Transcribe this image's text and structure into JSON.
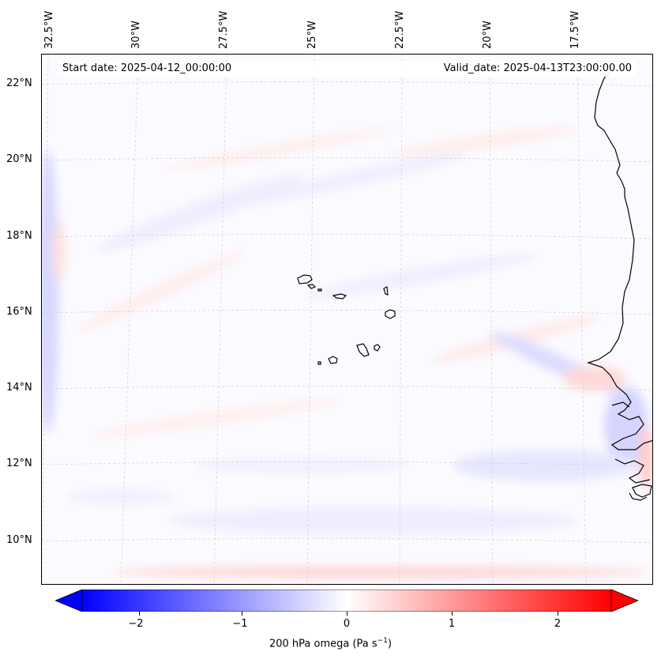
{
  "map": {
    "start_date": "Start date: 2025-04-12_00:00:00",
    "valid_date": "Valid_date: 2025-04-13T23:00:00.00",
    "lon_labels": [
      "32.5°W",
      "30°W",
      "27.5°W",
      "25°W",
      "22.5°W",
      "20°W",
      "17.5°W"
    ],
    "lat_labels": [
      "22°N",
      "20°N",
      "18°N",
      "16°N",
      "14°N",
      "12°N",
      "10°N"
    ],
    "features": [
      "Cabo Verde islands",
      "West African coastline"
    ]
  },
  "colorbar": {
    "label_prefix": "200 hPa omega (Pa s",
    "label_sup": "−1",
    "label_suffix": ")",
    "ticks": [
      "−2",
      "−1",
      "0",
      "1",
      "2"
    ],
    "range": [
      -2.6,
      2.6
    ],
    "extend": "both",
    "cmap": "bwr",
    "colors": {
      "min": "#0000ff",
      "mid": "#ffffff",
      "max": "#ff0000"
    }
  }
}
